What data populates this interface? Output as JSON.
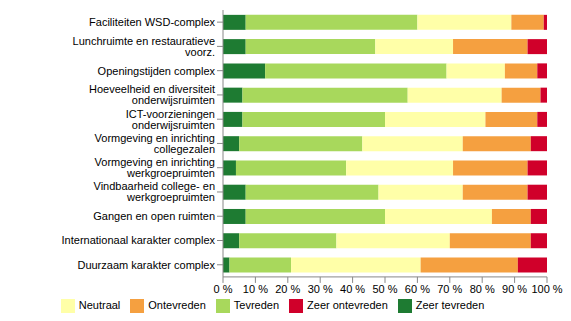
{
  "chart_data": {
    "type": "bar",
    "orientation": "horizontal",
    "stacked": true,
    "grid": false,
    "legend": "bottom",
    "categories": [
      "Faciliteiten WSD-complex",
      "Lunchruimte en restauratieve voorz.",
      "Openingstijden complex",
      "Hoeveelheid en diversiteit onderwijsruimten",
      "ICT-voorzieningen onderwijsruimten",
      "Vormgeving en inrichting collegezalen",
      "Vormgeving en inrichting werkgroepruimten",
      "Vindbaarheid college- en werkgroepruimten",
      "Gangen en open ruimten",
      "Internationaal karakter complex",
      "Duurzaam karakter complex"
    ],
    "series": [
      {
        "name": "Zeer tevreden",
        "color": "#1e7b32",
        "values": [
          7,
          7,
          13,
          6,
          6,
          5,
          4,
          7,
          7,
          5,
          2
        ]
      },
      {
        "name": "Tevreden",
        "color": "#a8d85c",
        "values": [
          53,
          40,
          56,
          51,
          44,
          38,
          34,
          41,
          43,
          30,
          19
        ]
      },
      {
        "name": "Neutraal",
        "color": "#ffffa8",
        "values": [
          29,
          24,
          18,
          29,
          31,
          31,
          33,
          26,
          33,
          35,
          40
        ]
      },
      {
        "name": "Ontevreden",
        "color": "#f5a040",
        "values": [
          10,
          23,
          10,
          12,
          16,
          21,
          23,
          20,
          12,
          25,
          30
        ]
      },
      {
        "name": "Zeer ontevreden",
        "color": "#d0002a",
        "values": [
          1,
          6,
          3,
          2,
          3,
          5,
          6,
          6,
          5,
          5,
          9
        ]
      }
    ],
    "xlim": [
      0,
      100
    ],
    "xticks": [
      {
        "value": 0,
        "label": "0 %"
      },
      {
        "value": 10,
        "label": "10 %"
      },
      {
        "value": 20,
        "label": "20 %"
      },
      {
        "value": 30,
        "label": "30 %"
      },
      {
        "value": 40,
        "label": "40 %"
      },
      {
        "value": 50,
        "label": "50 %"
      },
      {
        "value": 60,
        "label": "60 %"
      },
      {
        "value": 70,
        "label": "70 %"
      },
      {
        "value": 80,
        "label": "80 %"
      },
      {
        "value": 90,
        "label": "90 %"
      },
      {
        "value": 100,
        "label": "100 %"
      }
    ]
  }
}
